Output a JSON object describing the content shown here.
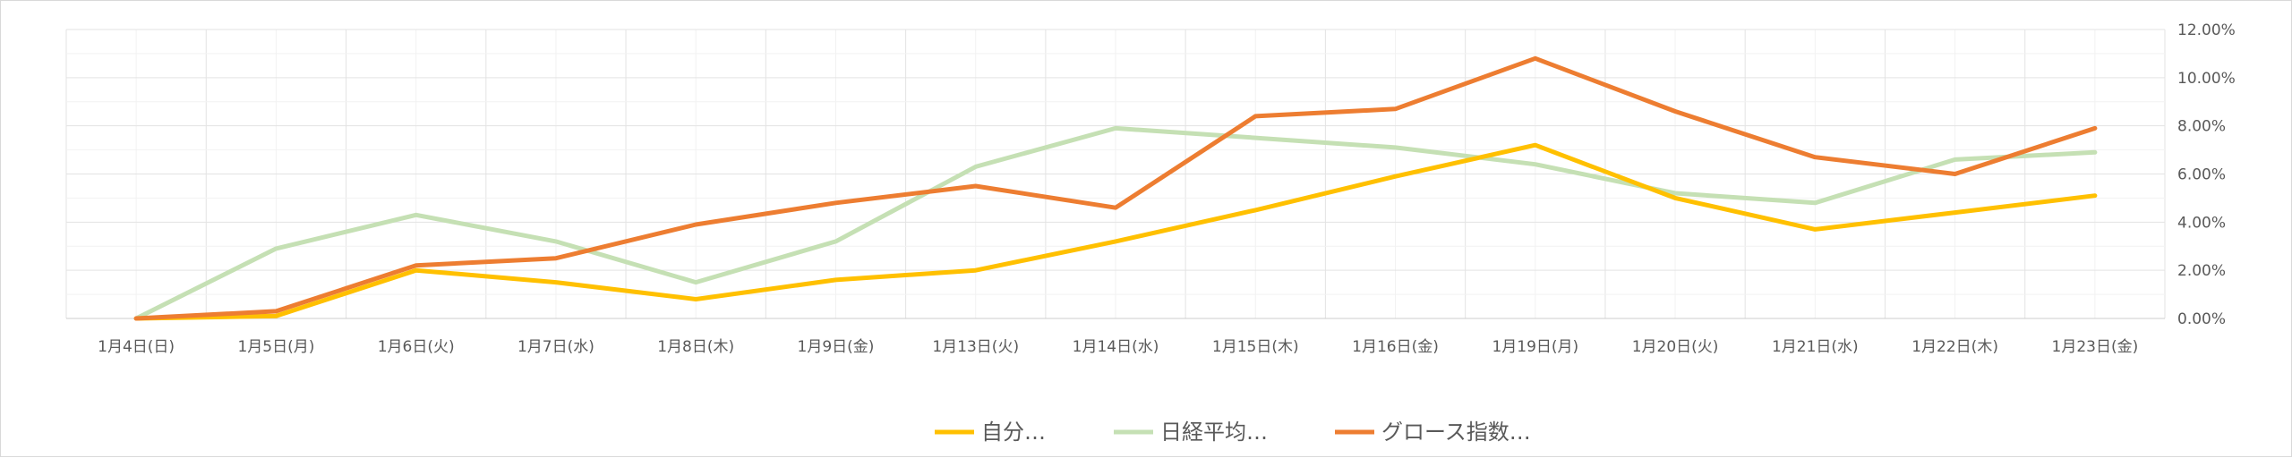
{
  "chart_data": {
    "type": "line",
    "categories": [
      "1月4日(日)",
      "1月5日(月)",
      "1月6日(火)",
      "1月7日(水)",
      "1月8日(木)",
      "1月9日(金)",
      "1月13日(火)",
      "1月14日(水)",
      "1月15日(木)",
      "1月16日(金)",
      "1月19日(月)",
      "1月20日(火)",
      "1月21日(水)",
      "1月22日(木)",
      "1月23日(金)"
    ],
    "series": [
      {
        "name": "自分…",
        "color": "#FFC000",
        "values": [
          0.0,
          0.1,
          2.0,
          1.5,
          0.8,
          1.6,
          2.0,
          3.2,
          4.5,
          5.9,
          7.2,
          5.0,
          3.7,
          4.4,
          5.1
        ]
      },
      {
        "name": "日経平均…",
        "color": "#C5E0B4",
        "values": [
          0.0,
          2.9,
          4.3,
          3.2,
          1.5,
          3.2,
          6.3,
          7.9,
          7.5,
          7.1,
          6.4,
          5.2,
          4.8,
          6.6,
          6.9
        ]
      },
      {
        "name": "グロース指数…",
        "color": "#ED7D31",
        "values": [
          0.0,
          0.3,
          2.2,
          2.5,
          3.9,
          4.8,
          5.5,
          4.6,
          8.4,
          8.7,
          10.8,
          8.6,
          6.7,
          6.0,
          7.9
        ]
      }
    ],
    "y_axis": {
      "position": "right",
      "min": 0,
      "max": 12,
      "step": 2,
      "tick_labels": [
        "0.00%",
        "2.00%",
        "4.00%",
        "6.00%",
        "8.00%",
        "10.00%",
        "12.00%"
      ]
    },
    "grid": true,
    "legend_position": "bottom"
  }
}
